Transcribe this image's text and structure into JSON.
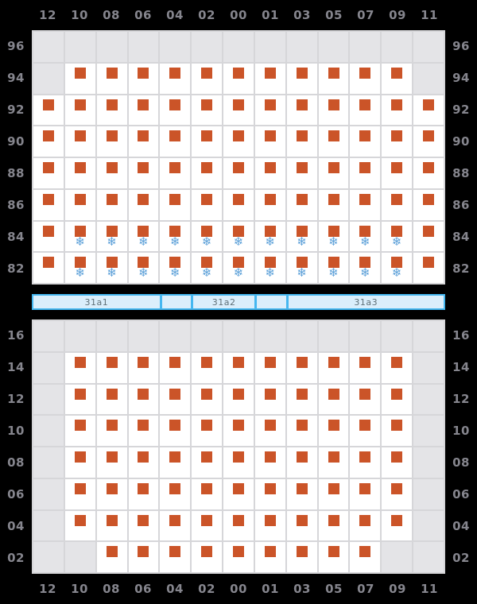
{
  "meta": {
    "background": "#000000"
  },
  "colors": {
    "cell_empty": "#e4e4e7",
    "cell_open": "#ffffff",
    "grid_line": "#d6d6d9",
    "seat_marker": "#cb5428",
    "snowflake": "#5a9fd8",
    "axis_text": "#85858d",
    "bar_fill": "#dbeefb",
    "bar_border": "#45b7f0",
    "bar_text": "#5f7078"
  },
  "glyphs": {
    "snowflake": "❄"
  },
  "legend": {
    "seat_marker_meaning": "berth-marker",
    "snowflake_meaning": "air-conditioning"
  },
  "columns": [
    "12",
    "10",
    "08",
    "06",
    "04",
    "02",
    "00",
    "01",
    "03",
    "05",
    "07",
    "09",
    "11"
  ],
  "top_grid": {
    "row_labels": [
      "96",
      "94",
      "92",
      "90",
      "88",
      "86",
      "84",
      "82"
    ],
    "cells": [
      [
        0,
        0,
        0,
        0,
        0,
        0,
        0,
        0,
        0,
        0,
        0,
        0,
        0
      ],
      [
        0,
        1,
        1,
        1,
        1,
        1,
        1,
        1,
        1,
        1,
        1,
        1,
        0
      ],
      [
        1,
        1,
        1,
        1,
        1,
        1,
        1,
        1,
        1,
        1,
        1,
        1,
        1
      ],
      [
        1,
        1,
        1,
        1,
        1,
        1,
        1,
        1,
        1,
        1,
        1,
        1,
        1
      ],
      [
        1,
        1,
        1,
        1,
        1,
        1,
        1,
        1,
        1,
        1,
        1,
        1,
        1
      ],
      [
        1,
        1,
        1,
        1,
        1,
        1,
        1,
        1,
        1,
        1,
        1,
        1,
        1
      ],
      [
        1,
        2,
        2,
        2,
        2,
        2,
        2,
        2,
        2,
        2,
        2,
        2,
        1
      ],
      [
        1,
        2,
        2,
        2,
        2,
        2,
        2,
        2,
        2,
        2,
        2,
        2,
        1
      ]
    ]
  },
  "section_bar": {
    "segments": [
      {
        "label": "31a1",
        "span": 4
      },
      {
        "label": "",
        "span": 1
      },
      {
        "label": "31a2",
        "span": 2
      },
      {
        "label": "",
        "span": 1
      },
      {
        "label": "31a3",
        "span": 5
      }
    ]
  },
  "bottom_grid": {
    "row_labels": [
      "16",
      "14",
      "12",
      "10",
      "08",
      "06",
      "04",
      "02"
    ],
    "cells": [
      [
        0,
        0,
        0,
        0,
        0,
        0,
        0,
        0,
        0,
        0,
        0,
        0,
        0
      ],
      [
        0,
        1,
        1,
        1,
        1,
        1,
        1,
        1,
        1,
        1,
        1,
        1,
        0
      ],
      [
        0,
        1,
        1,
        1,
        1,
        1,
        1,
        1,
        1,
        1,
        1,
        1,
        0
      ],
      [
        0,
        1,
        1,
        1,
        1,
        1,
        1,
        1,
        1,
        1,
        1,
        1,
        0
      ],
      [
        0,
        1,
        1,
        1,
        1,
        1,
        1,
        1,
        1,
        1,
        1,
        1,
        0
      ],
      [
        0,
        1,
        1,
        1,
        1,
        1,
        1,
        1,
        1,
        1,
        1,
        1,
        0
      ],
      [
        0,
        1,
        1,
        1,
        1,
        1,
        1,
        1,
        1,
        1,
        1,
        1,
        0
      ],
      [
        0,
        0,
        1,
        1,
        1,
        1,
        1,
        1,
        1,
        1,
        1,
        0,
        0
      ]
    ]
  }
}
